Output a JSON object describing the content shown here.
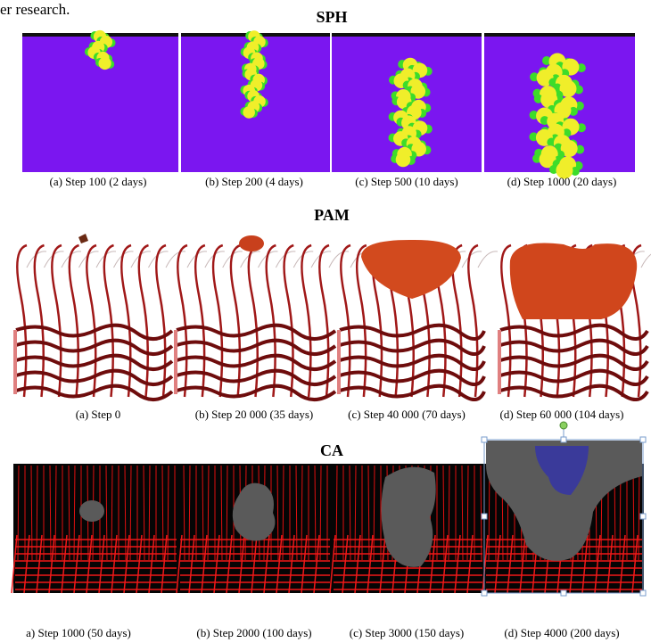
{
  "document": {
    "intro_text": "er research.",
    "figures": [
      {
        "title": "SPH",
        "captions": [
          "(a) Step 100  (2 days)",
          "(b) Step 200  (4 days)",
          "(c) Step 500  (10 days)",
          "(d) Step 1000  (20 days)"
        ]
      },
      {
        "title": "PAM",
        "captions": [
          "(a) Step 0",
          "(b) Step 20 000 (35 days)",
          "(c) Step 40 000 (70 days)",
          "(d) Step 60 000 (104 days)"
        ]
      },
      {
        "title": "CA",
        "captions": [
          "a) Step 1000  (50 days)",
          "(b) Step 2000  (100 days)",
          "(c) Step 3000  (150 days)",
          "(d) Step 4000  (200 days)"
        ]
      }
    ]
  }
}
